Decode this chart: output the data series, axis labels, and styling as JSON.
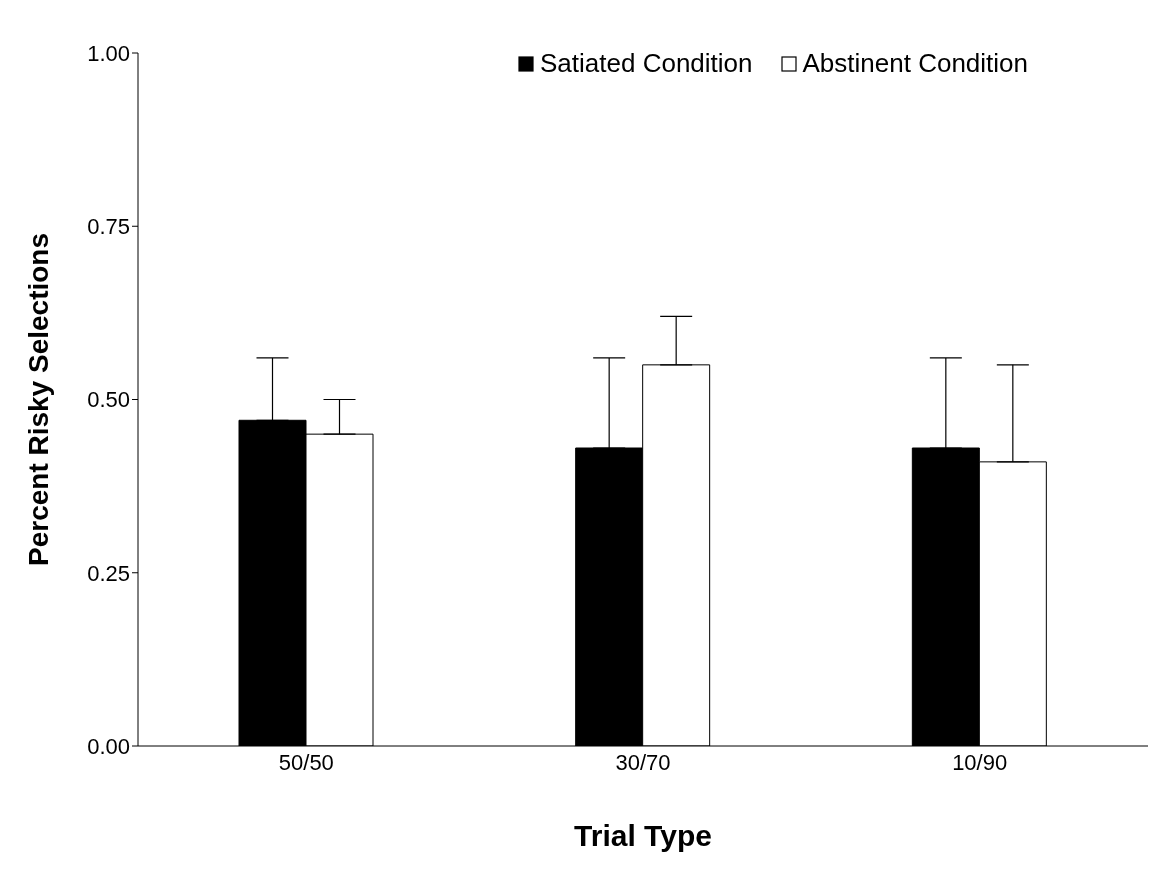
{
  "chart_data": {
    "type": "bar",
    "xlabel": "Trial Type",
    "ylabel": "Percent Risky Selections",
    "categories": [
      "50/50",
      "30/70",
      "10/90"
    ],
    "series": [
      {
        "name": "Satiated Condition",
        "color": "#000000",
        "values": [
          0.47,
          0.43,
          0.43
        ],
        "errors": [
          [
            0.47,
            0.56
          ],
          [
            0.43,
            0.56
          ],
          [
            0.43,
            0.56
          ]
        ]
      },
      {
        "name": "Abstinent Condition",
        "color": "#ffffff",
        "values": [
          0.45,
          0.55,
          0.41
        ],
        "errors": [
          [
            0.45,
            0.5
          ],
          [
            0.55,
            0.62
          ],
          [
            0.41,
            0.55
          ]
        ]
      }
    ],
    "ylim": [
      0,
      1
    ],
    "yticks": [
      {
        "value": 0,
        "label": "0.00"
      },
      {
        "value": 0.25,
        "label": "0.25"
      },
      {
        "value": 0.5,
        "label": "0.50"
      },
      {
        "value": 0.75,
        "label": "0.75"
      },
      {
        "value": 1,
        "label": "1.00"
      }
    ],
    "grid": false,
    "legend": "top right"
  }
}
